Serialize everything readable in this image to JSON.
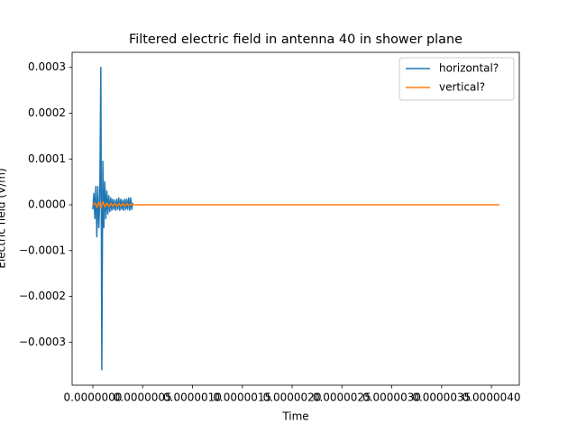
{
  "chart_data": {
    "type": "line",
    "title": "Filtered electric field in antenna 40 in shower plane",
    "x_label": "Time",
    "y_label": "Electric field (V/m)",
    "xlim": [
      -2.08e-07,
      4.28e-06
    ],
    "ylim": [
      -0.000394,
      0.000333
    ],
    "xticks": [
      {
        "value": 0,
        "label": "0.0000000"
      },
      {
        "value": 5e-07,
        "label": "0.0000005"
      },
      {
        "value": 1e-06,
        "label": "0.0000010"
      },
      {
        "value": 1.5e-06,
        "label": "0.0000015"
      },
      {
        "value": 2e-06,
        "label": "0.0000020"
      },
      {
        "value": 2.5e-06,
        "label": "0.0000025"
      },
      {
        "value": 3e-06,
        "label": "0.0000030"
      },
      {
        "value": 3.5e-06,
        "label": "0.0000035"
      },
      {
        "value": 4e-06,
        "label": "0.0000040"
      }
    ],
    "yticks": [
      {
        "value": -0.0003,
        "label": "−0.0003"
      },
      {
        "value": -0.0002,
        "label": "−0.0002"
      },
      {
        "value": -0.0001,
        "label": "−0.0001"
      },
      {
        "value": 0,
        "label": "0.0000"
      },
      0.0001,
      0.0002,
      0.0003
    ],
    "legend": "upper right",
    "series": [
      {
        "name": "horizontal?",
        "color": "#1f77b4",
        "x": [
          0,
          1e-08,
          2e-08,
          3e-08,
          4e-08,
          5e-08,
          6e-08,
          7e-08,
          8e-08,
          9e-08,
          1e-07,
          1.1e-07,
          1.2e-07,
          1.3e-07,
          1.4e-07,
          1.5e-07,
          1.6e-07,
          1.7e-07,
          1.8e-07,
          1.9e-07,
          2e-07,
          2.1e-07,
          2.2e-07,
          2.3e-07,
          2.4e-07,
          2.5e-07,
          2.6e-07,
          2.7e-07,
          2.8e-07,
          2.9e-07,
          3e-07,
          3.1e-07,
          3.2e-07,
          3.3e-07,
          3.4e-07,
          3.5e-07,
          3.6e-07,
          3.7e-07,
          3.8e-07,
          3.9e-07,
          4e-07
        ],
        "values": [
          -1e-05,
          2.5e-05,
          -3e-05,
          4e-05,
          -7e-05,
          4e-05,
          -5e-05,
          2e-05,
          0.0003,
          -0.00036,
          9.5e-05,
          -5e-05,
          5e-05,
          -3e-05,
          3e-05,
          -2e-05,
          2e-05,
          -1.5e-05,
          1.5e-05,
          -1.2e-05,
          1.2e-05,
          -1e-05,
          1e-05,
          -1.2e-05,
          1.2e-05,
          -1e-05,
          1.5e-05,
          -1.2e-05,
          1.2e-05,
          -1e-05,
          1e-05,
          -1.2e-05,
          1.2e-05,
          -1e-05,
          1.2e-05,
          -1e-05,
          1.5e-05,
          -1.2e-05,
          1.5e-05,
          -1e-05,
          5e-06
        ]
      },
      {
        "name": "vertical?",
        "color": "#ff7f0e",
        "x": [
          0,
          2e-08,
          4e-08,
          6e-08,
          8e-08,
          1e-07,
          1.2e-07,
          1.4e-07,
          1.6e-07,
          1.8e-07,
          2e-07,
          2.2e-07,
          2.4e-07,
          2.6e-07,
          2.8e-07,
          3e-07,
          3.2e-07,
          3.4e-07,
          3.6e-07,
          3.8e-07,
          4e-07,
          4.08e-06
        ],
        "values": [
          0,
          4e-06,
          -5e-06,
          6e-06,
          -8e-06,
          7e-06,
          -5e-06,
          4e-06,
          -4e-06,
          3e-06,
          -3e-06,
          3e-06,
          -3e-06,
          3e-06,
          -3e-06,
          3e-06,
          -3e-06,
          3e-06,
          -2e-06,
          2e-06,
          0,
          0
        ]
      }
    ]
  }
}
